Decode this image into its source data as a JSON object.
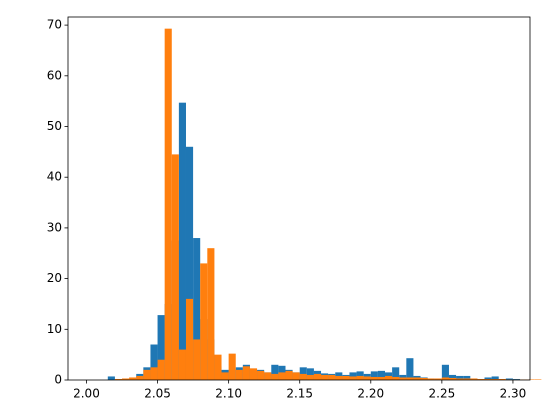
{
  "chart_data": {
    "type": "histogram",
    "series": [
      {
        "color": "#1f77b4",
        "bins": [
          2.015,
          2.02,
          2.025,
          2.03,
          2.035,
          2.04,
          2.045,
          2.05,
          2.055,
          2.06,
          2.065,
          2.07,
          2.075,
          2.08,
          2.085,
          2.09,
          2.095,
          2.1,
          2.105,
          2.11,
          2.115,
          2.12,
          2.125,
          2.13,
          2.135,
          2.14,
          2.145,
          2.15,
          2.155,
          2.16,
          2.165,
          2.17,
          2.175,
          2.18,
          2.185,
          2.19,
          2.195,
          2.2,
          2.205,
          2.21,
          2.215,
          2.22,
          2.225,
          2.23,
          2.235,
          2.24,
          2.245,
          2.25,
          2.255,
          2.26,
          2.265,
          2.27,
          2.275,
          2.28,
          2.285,
          2.29,
          2.295,
          2.3,
          2.305
        ],
        "values": [
          0.7,
          0,
          0,
          0.3,
          1.2,
          2.5,
          7,
          12.8,
          15,
          27.5,
          54.7,
          46,
          28,
          12,
          8,
          2.7,
          2,
          2,
          2.5,
          3,
          2,
          2,
          1.5,
          3,
          2.8,
          2,
          1.5,
          2.5,
          2.3,
          1.8,
          1.3,
          1.2,
          1.5,
          1,
          1.5,
          1.7,
          1.2,
          1.7,
          1.8,
          1.5,
          2.5,
          1,
          4.3,
          0.8,
          0.5,
          0.3,
          0,
          3,
          1,
          0.8,
          0.8,
          0.3,
          0,
          0.5,
          0.7,
          0,
          0.3,
          0.2
        ]
      },
      {
        "color": "#ff7f0e",
        "bins": [
          2.02,
          2.025,
          2.03,
          2.035,
          2.04,
          2.045,
          2.05,
          2.055,
          2.06,
          2.065,
          2.07,
          2.075,
          2.08,
          2.085,
          2.09,
          2.095,
          2.1,
          2.105,
          2.11,
          2.115,
          2.12,
          2.125,
          2.13,
          2.135,
          2.14,
          2.145,
          2.15,
          2.155,
          2.16,
          2.165,
          2.17,
          2.175,
          2.18,
          2.185,
          2.19,
          2.195,
          2.2,
          2.205,
          2.21,
          2.215,
          2.22,
          2.225,
          2.23,
          2.235,
          2.24,
          2.245,
          2.25,
          2.255,
          2.26,
          2.265,
          2.27,
          2.275,
          2.28,
          2.285,
          2.29,
          2.295,
          2.3,
          2.305,
          2.31,
          2.315,
          2.32
        ],
        "values": [
          0.2,
          0.3,
          0.5,
          0.8,
          2,
          2.5,
          4,
          69.3,
          44.5,
          6,
          16,
          8,
          23,
          26,
          5,
          1.5,
          5.2,
          2,
          2.7,
          2.3,
          1.8,
          1.5,
          1.2,
          1.5,
          1.8,
          1.5,
          1.2,
          1,
          1.2,
          1,
          1,
          0.8,
          0.8,
          0.7,
          0.8,
          0.7,
          0.6,
          0.6,
          0.8,
          0.6,
          0.5,
          0.5,
          0.5,
          0.4,
          0.3,
          0.3,
          0.5,
          0.4,
          0.3,
          0.3,
          0.3,
          0.2,
          0.2,
          0.2,
          0.2,
          0.1,
          0.1,
          0.1,
          0.1,
          0.1
        ]
      }
    ],
    "xlim": [
      1.987,
      2.312
    ],
    "xticks": [
      {
        "value": 2.0,
        "label": "2.00"
      },
      {
        "value": 2.05,
        "label": "2.05"
      },
      {
        "value": 2.1,
        "label": "2.10"
      },
      {
        "value": 2.15,
        "label": "2.15"
      },
      {
        "value": 2.2,
        "label": "2.20"
      },
      {
        "value": 2.25,
        "label": "2.25"
      },
      {
        "value": 2.3,
        "label": "2.30"
      }
    ],
    "ylim": [
      0,
      71.6
    ],
    "yticks": [
      0,
      10,
      20,
      30,
      40,
      50,
      60,
      70
    ]
  }
}
